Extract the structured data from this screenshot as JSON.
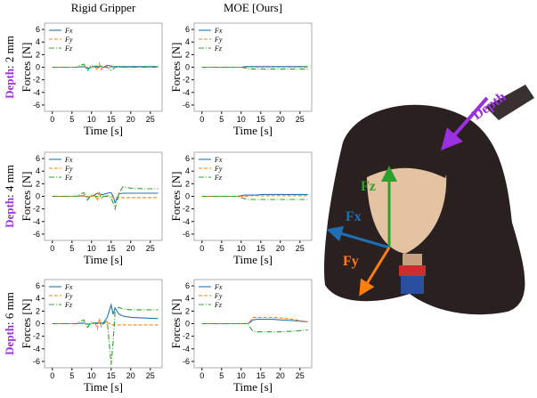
{
  "column_titles": [
    "Rigid Gripper",
    "MOE [Ours]"
  ],
  "row_labels": [
    {
      "bold": "Depth",
      "rest": ": 2 mm"
    },
    {
      "bold": "Depth",
      "rest": ": 4 mm"
    },
    {
      "bold": "Depth",
      "rest": ": 6 mm"
    }
  ],
  "photo_labels": {
    "depth": "Depth",
    "fz": "Fz",
    "fx": "Fx",
    "fy": "Fy"
  },
  "chart_data": [
    {
      "type": "line",
      "xlabel": "Time [s]",
      "ylabel": "Forces [N]",
      "xlim": [
        -2,
        28
      ],
      "ylim": [
        -7,
        7
      ],
      "xticks": [
        0,
        5,
        10,
        15,
        20,
        25
      ],
      "yticks": [
        6,
        4,
        2,
        0,
        -2,
        -4,
        -6
      ],
      "x": [
        0,
        3,
        6,
        8,
        9,
        10,
        11,
        11.5,
        12,
        12.5,
        13,
        14,
        15,
        15.5,
        16,
        17,
        18,
        20,
        23,
        27
      ],
      "series": [
        {
          "name": "Fx",
          "color": "#1f77b4",
          "values": [
            0,
            0,
            0,
            0.1,
            -0.2,
            0,
            0.2,
            0.1,
            0.2,
            0.1,
            0,
            0.3,
            0.2,
            0.1,
            0.1,
            0.1,
            0.1,
            0.1,
            0.1,
            0.1
          ]
        },
        {
          "name": "Fy",
          "color": "#ff7f0e",
          "values": [
            0,
            0,
            0,
            0,
            0,
            0,
            0,
            -0.5,
            0.6,
            -0.4,
            0,
            0.1,
            0,
            0,
            0,
            0,
            0,
            0,
            0,
            0
          ]
        },
        {
          "name": "Fz",
          "color": "#2ca02c",
          "values": [
            0,
            0,
            0,
            0.5,
            -0.5,
            0.3,
            0,
            0,
            0,
            0,
            0,
            0,
            -0.5,
            -0.3,
            0,
            0,
            0,
            0,
            0,
            0
          ]
        }
      ]
    },
    {
      "type": "line",
      "xlabel": "Time [s]",
      "ylabel": "Forces [N]",
      "xlim": [
        -2,
        28
      ],
      "ylim": [
        -7,
        7
      ],
      "xticks": [
        0,
        5,
        10,
        15,
        20,
        25
      ],
      "yticks": [
        6,
        4,
        2,
        0,
        -2,
        -4,
        -6
      ],
      "x": [
        0,
        3,
        6,
        8,
        9,
        10,
        11,
        11.5,
        12,
        12.5,
        13,
        14,
        15,
        15.5,
        16,
        17,
        18,
        20,
        23,
        27
      ],
      "series": [
        {
          "name": "Fx",
          "color": "#1f77b4",
          "values": [
            0,
            0,
            0,
            0,
            0,
            0,
            0.1,
            0.1,
            0.1,
            0.1,
            0.1,
            0.1,
            0.1,
            0.1,
            0.1,
            0.1,
            0.1,
            0.1,
            0.1,
            0.1
          ]
        },
        {
          "name": "Fy",
          "color": "#ff7f0e",
          "values": [
            0,
            0,
            0,
            0,
            0,
            0,
            0,
            0,
            0,
            0,
            0,
            0,
            0,
            0,
            0,
            0,
            0,
            0,
            0,
            0
          ]
        },
        {
          "name": "Fz",
          "color": "#2ca02c",
          "values": [
            0,
            0,
            0,
            0,
            0,
            0,
            -0.1,
            -0.2,
            -0.3,
            -0.3,
            -0.3,
            -0.3,
            -0.3,
            -0.3,
            -0.3,
            -0.3,
            -0.3,
            -0.3,
            -0.3,
            -0.3
          ]
        }
      ]
    },
    {
      "type": "line",
      "xlabel": "Time [s]",
      "ylabel": "Forces [N]",
      "xlim": [
        -2,
        28
      ],
      "ylim": [
        -7,
        7
      ],
      "xticks": [
        0,
        5,
        10,
        15,
        20,
        25
      ],
      "yticks": [
        6,
        4,
        2,
        0,
        -2,
        -4,
        -6
      ],
      "x": [
        0,
        3,
        6,
        8,
        9,
        10,
        11,
        11.5,
        12,
        12.5,
        13,
        14,
        15,
        15.5,
        16,
        17,
        18,
        20,
        23,
        27
      ],
      "series": [
        {
          "name": "Fx",
          "color": "#1f77b4",
          "values": [
            0,
            0,
            0,
            0.1,
            -0.1,
            0,
            0.3,
            0.5,
            0.4,
            0.3,
            0.3,
            0.5,
            0.6,
            0,
            -1,
            0.4,
            0.5,
            0.5,
            0.5,
            0.5
          ]
        },
        {
          "name": "Fy",
          "color": "#ff7f0e",
          "values": [
            0,
            0,
            0,
            0,
            0,
            0,
            0,
            -0.7,
            0.7,
            -0.4,
            0,
            0.1,
            0,
            -0.2,
            -0.2,
            -0.2,
            -0.2,
            -0.2,
            -0.2,
            -0.2
          ]
        },
        {
          "name": "Fz",
          "color": "#2ca02c",
          "values": [
            0,
            0,
            0,
            0.6,
            -0.6,
            0.3,
            0,
            0,
            0,
            0,
            0,
            0,
            -0.3,
            -1,
            -2,
            0.5,
            1.5,
            1.3,
            1.2,
            1.2
          ]
        }
      ]
    },
    {
      "type": "line",
      "xlabel": "Time [s]",
      "ylabel": "Forces [N]",
      "xlim": [
        -2,
        28
      ],
      "ylim": [
        -7,
        7
      ],
      "xticks": [
        0,
        5,
        10,
        15,
        20,
        25
      ],
      "yticks": [
        6,
        4,
        2,
        0,
        -2,
        -4,
        -6
      ],
      "x": [
        0,
        3,
        6,
        8,
        9,
        10,
        11,
        11.5,
        12,
        12.5,
        13,
        14,
        15,
        15.5,
        16,
        17,
        18,
        20,
        23,
        27
      ],
      "series": [
        {
          "name": "Fx",
          "color": "#1f77b4",
          "values": [
            0,
            0,
            0,
            0,
            0,
            0.1,
            0.2,
            0.2,
            0.2,
            0.2,
            0.2,
            0.2,
            0.3,
            0.3,
            0.3,
            0.3,
            0.3,
            0.3,
            0.3,
            0.3
          ]
        },
        {
          "name": "Fy",
          "color": "#ff7f0e",
          "values": [
            0,
            0,
            0,
            0,
            0,
            0,
            0,
            0,
            0.1,
            0.1,
            0.1,
            0.1,
            0.1,
            0.1,
            0.1,
            0.1,
            0.1,
            0.1,
            0.1,
            0.1
          ]
        },
        {
          "name": "Fz",
          "color": "#2ca02c",
          "values": [
            0,
            0,
            0,
            0,
            0,
            -0.2,
            -0.4,
            -0.5,
            -0.5,
            -0.5,
            -0.5,
            -0.5,
            -0.5,
            -0.5,
            -0.5,
            -0.5,
            -0.5,
            -0.5,
            -0.5,
            -0.5
          ]
        }
      ]
    },
    {
      "type": "line",
      "xlabel": "Time [s]",
      "ylabel": "Forces [N]",
      "xlim": [
        -2,
        28
      ],
      "ylim": [
        -7,
        7
      ],
      "xticks": [
        0,
        5,
        10,
        15,
        20,
        25
      ],
      "yticks": [
        6,
        4,
        2,
        0,
        -2,
        -4,
        -6
      ],
      "x": [
        0,
        3,
        6,
        8,
        9,
        10,
        11,
        11.5,
        12,
        12.5,
        13,
        14,
        15,
        15.5,
        16,
        17,
        18,
        20,
        23,
        27
      ],
      "series": [
        {
          "name": "Fx",
          "color": "#1f77b4",
          "values": [
            0,
            0,
            0,
            0.1,
            -0.1,
            0,
            0.1,
            0.1,
            0.1,
            0.1,
            0.1,
            1,
            3,
            1.5,
            2.5,
            1.5,
            1.2,
            1,
            0.9,
            0.8
          ]
        },
        {
          "name": "Fy",
          "color": "#ff7f0e",
          "values": [
            0,
            0,
            0,
            0,
            0,
            0,
            0,
            -0.8,
            0.8,
            -0.5,
            0,
            0.1,
            0,
            -0.2,
            -0.2,
            -0.2,
            -0.2,
            -0.2,
            -0.2,
            -0.2
          ]
        },
        {
          "name": "Fz",
          "color": "#2ca02c",
          "values": [
            0,
            0,
            0,
            0.6,
            -0.6,
            0.3,
            0,
            0,
            0,
            0,
            0,
            0.5,
            -6.5,
            -3,
            2,
            2.6,
            2.3,
            2.2,
            2.2,
            2.2
          ]
        }
      ]
    },
    {
      "type": "line",
      "xlabel": "Time [s]",
      "ylabel": "Forces [N]",
      "xlim": [
        -2,
        28
      ],
      "ylim": [
        -7,
        7
      ],
      "xticks": [
        0,
        5,
        10,
        15,
        20,
        25
      ],
      "yticks": [
        6,
        4,
        2,
        0,
        -2,
        -4,
        -6
      ],
      "x": [
        0,
        3,
        6,
        8,
        9,
        10,
        11,
        11.5,
        12,
        12.5,
        13,
        14,
        15,
        15.5,
        16,
        17,
        18,
        20,
        23,
        27
      ],
      "series": [
        {
          "name": "Fx",
          "color": "#1f77b4",
          "values": [
            0,
            0,
            0,
            0,
            0,
            0,
            0,
            0,
            0.1,
            0.3,
            0.6,
            0.7,
            0.7,
            0.7,
            0.7,
            0.7,
            0.7,
            0.6,
            0.5,
            0.3
          ]
        },
        {
          "name": "Fy",
          "color": "#ff7f0e",
          "values": [
            0,
            0,
            0,
            0,
            0,
            0,
            0,
            0,
            0.2,
            0.6,
            1,
            1,
            1,
            1,
            1,
            1,
            1,
            0.9,
            0.7,
            0.3
          ]
        },
        {
          "name": "Fz",
          "color": "#2ca02c",
          "values": [
            0,
            0,
            0,
            0,
            0,
            0,
            0,
            0,
            -0.3,
            -0.8,
            -1.2,
            -1.3,
            -1.3,
            -1.3,
            -1.3,
            -1.3,
            -1.3,
            -1.3,
            -1.2,
            -1.0
          ]
        }
      ]
    }
  ]
}
